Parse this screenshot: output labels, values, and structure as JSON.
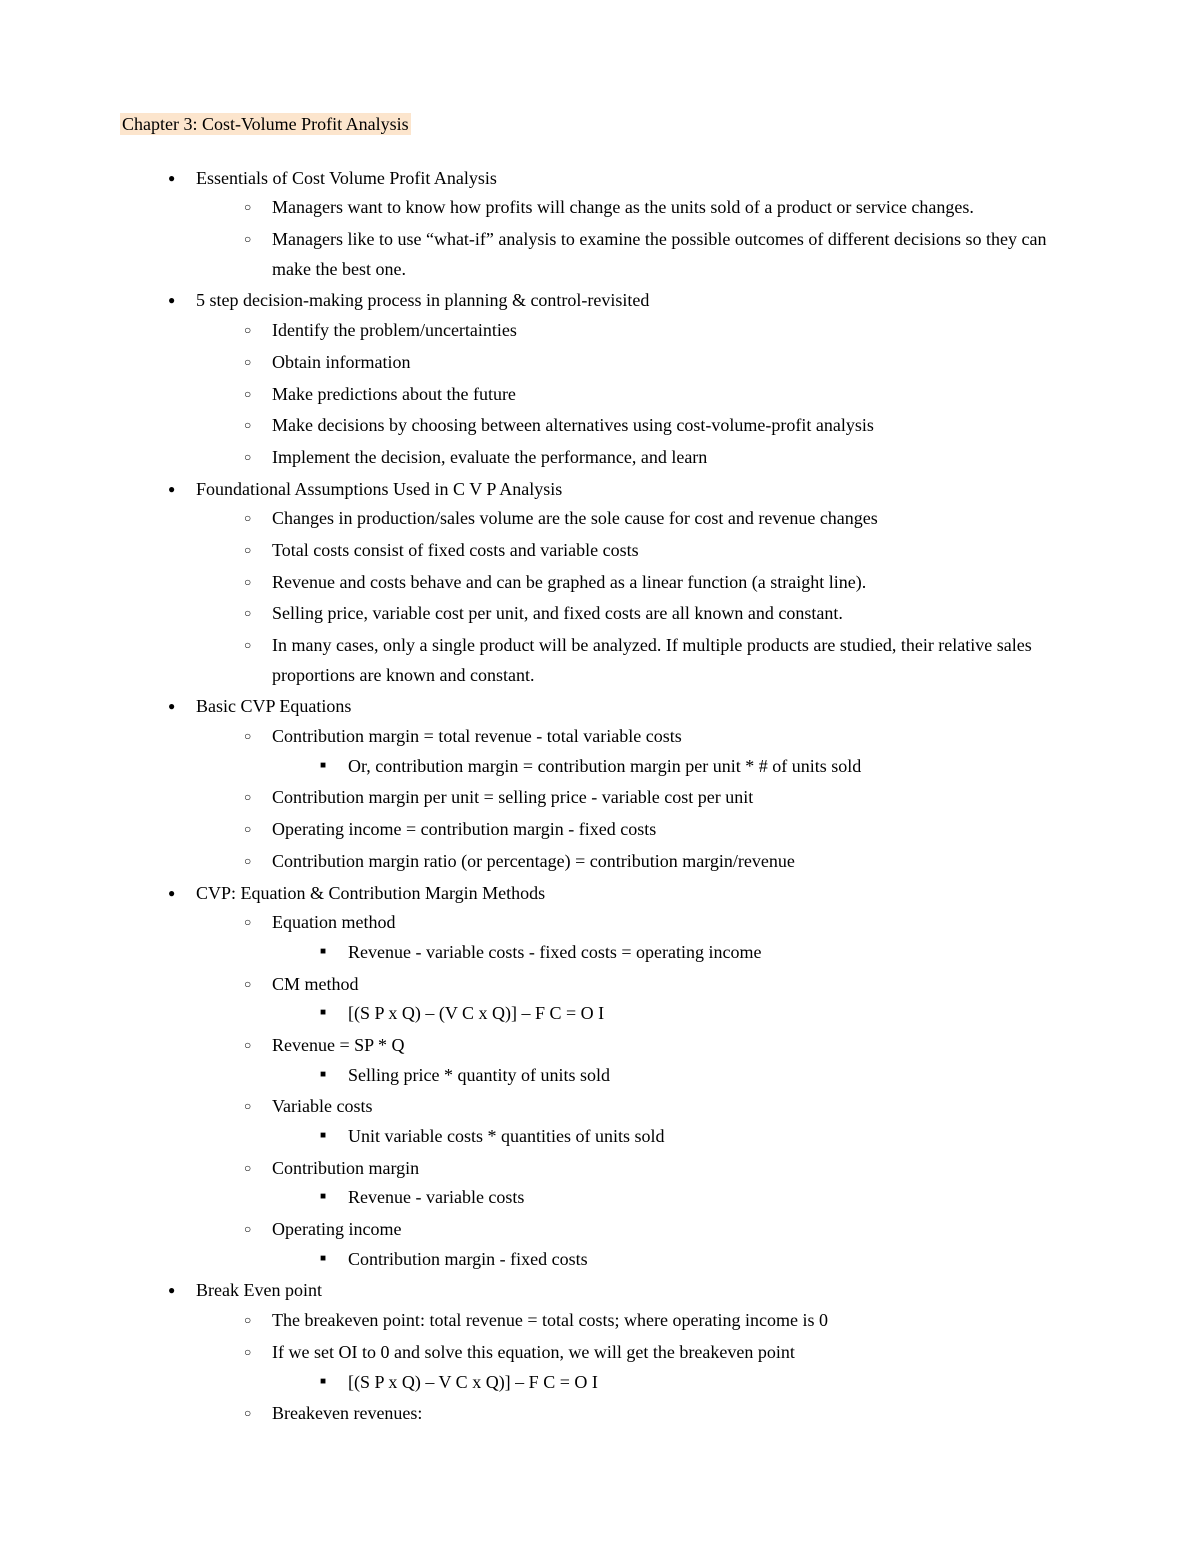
{
  "title": "Chapter 3: Cost-Volume Profit Analysis",
  "colors": {
    "highlight_bg": "#fce5cd",
    "text": "#000000",
    "page_bg": "#ffffff"
  },
  "typography": {
    "body_fontsize_pt": 13,
    "font_family": "Georgia / Times-like serif",
    "line_height": 1.65
  },
  "sections": [
    {
      "heading": "Essentials of Cost Volume Profit Analysis",
      "subs": [
        {
          "text": "Managers want to know how profits will change as the units sold of a product or service changes."
        },
        {
          "text": "Managers like to use “what-if” analysis to examine the possible outcomes of different decisions so they can make the best one."
        }
      ]
    },
    {
      "heading": "5 step decision-making process in planning & control-revisited",
      "subs": [
        {
          "text": "Identify the problem/uncertainties"
        },
        {
          "text": "Obtain information"
        },
        {
          "text": "Make predictions about the future"
        },
        {
          "text": "Make decisions by choosing between alternatives using cost-volume-profit analysis"
        },
        {
          "text": "Implement the decision, evaluate the performance, and learn"
        }
      ]
    },
    {
      "heading": "Foundational Assumptions Used in C V P Analysis",
      "subs": [
        {
          "text": "Changes in production/sales volume are the sole cause for cost and revenue changes"
        },
        {
          "text": "Total costs consist of fixed costs and variable costs"
        },
        {
          "text": "Revenue and costs behave and can be graphed as a linear function (a straight line)."
        },
        {
          "text": "Selling price, variable cost per unit, and fixed costs are all known and constant."
        },
        {
          "text": "In many cases, only a single product will be analyzed.  If multiple products are studied, their relative sales proportions are known and constant."
        }
      ]
    },
    {
      "heading": "Basic CVP Equations",
      "subs": [
        {
          "text": "Contribution margin = total revenue - total variable costs",
          "subs": [
            {
              "text": "Or, contribution margin = contribution margin per unit * # of units sold"
            }
          ]
        },
        {
          "text": "Contribution margin per unit = selling price - variable cost per unit"
        },
        {
          "text": "Operating income = contribution margin - fixed costs"
        },
        {
          "text": "Contribution margin ratio (or percentage) = contribution margin/revenue"
        }
      ]
    },
    {
      "heading": "CVP: Equation & Contribution Margin Methods",
      "subs": [
        {
          "text": "Equation method",
          "subs": [
            {
              "text": "Revenue - variable costs - fixed costs = operating income"
            }
          ]
        },
        {
          "text": "CM method",
          "subs": [
            {
              "text": "[(S P x Q) – (V C x Q)] – F C = O I"
            }
          ]
        },
        {
          "text": "Revenue = SP * Q",
          "subs": [
            {
              "text": "Selling price * quantity of units sold"
            }
          ]
        },
        {
          "text": "Variable costs",
          "subs": [
            {
              "text": "Unit variable costs * quantities of units sold"
            }
          ]
        },
        {
          "text": "Contribution margin",
          "subs": [
            {
              "text": "Revenue - variable costs"
            }
          ]
        },
        {
          "text": "Operating income",
          "subs": [
            {
              "text": "Contribution margin - fixed costs"
            }
          ]
        }
      ]
    },
    {
      "heading": "Break Even point",
      "subs": [
        {
          "text": "The breakeven point: total revenue = total costs; where operating income is 0"
        },
        {
          "text": "If we set OI to 0 and solve this equation, we will get the breakeven point",
          "subs": [
            {
              "text": "[(S P x Q) – V C x Q)] – F C = O I"
            }
          ]
        },
        {
          "text": "Breakeven revenues:"
        }
      ]
    }
  ]
}
